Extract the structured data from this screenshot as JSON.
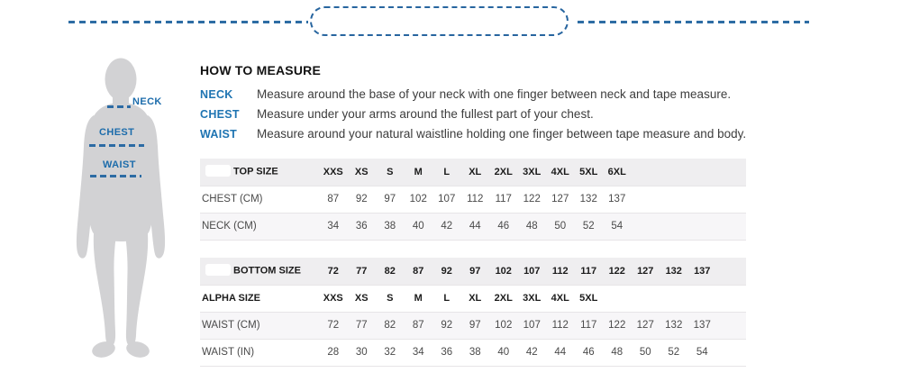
{
  "figure": {
    "neck_label": "NECK",
    "chest_label": "CHEST",
    "waist_label": "WAIST"
  },
  "how_to_measure": {
    "title": "HOW TO MEASURE",
    "items": [
      {
        "label": "NECK",
        "text": "Measure around the base of your neck with one finger between neck and tape measure."
      },
      {
        "label": "CHEST",
        "text": "Measure under your arms around the fullest part of your chest."
      },
      {
        "label": "WAIST",
        "text": "Measure around your natural waistline holding one finger between tape measure and body."
      }
    ]
  },
  "tables": {
    "top": {
      "title": "TOP SIZE",
      "logo_placeholder": true,
      "columns": [
        "XXS",
        "XS",
        "S",
        "M",
        "L",
        "XL",
        "2XL",
        "3XL",
        "4XL",
        "5XL",
        "6XL",
        "",
        "",
        ""
      ],
      "rows": [
        {
          "label": "CHEST (CM)",
          "shaded": false,
          "bold": false,
          "values": [
            "87",
            "92",
            "97",
            "102",
            "107",
            "112",
            "117",
            "122",
            "127",
            "132",
            "137",
            "",
            "",
            ""
          ]
        },
        {
          "label": "NECK (CM)",
          "shaded": true,
          "bold": false,
          "values": [
            "34",
            "36",
            "38",
            "40",
            "42",
            "44",
            "46",
            "48",
            "50",
            "52",
            "54",
            "",
            "",
            ""
          ]
        }
      ]
    },
    "bottom": {
      "title": "BOTTOM SIZE",
      "logo_placeholder": true,
      "columns": [
        "72",
        "77",
        "82",
        "87",
        "92",
        "97",
        "102",
        "107",
        "112",
        "117",
        "122",
        "127",
        "132",
        "137"
      ],
      "rows": [
        {
          "label": "ALPHA SIZE",
          "shaded": false,
          "bold": true,
          "values": [
            "XXS",
            "XS",
            "S",
            "M",
            "L",
            "XL",
            "2XL",
            "3XL",
            "4XL",
            "5XL",
            "",
            "",
            "",
            ""
          ]
        },
        {
          "label": "WAIST (CM)",
          "shaded": true,
          "bold": false,
          "values": [
            "72",
            "77",
            "82",
            "87",
            "92",
            "97",
            "102",
            "107",
            "112",
            "117",
            "122",
            "127",
            "132",
            "137"
          ]
        },
        {
          "label": "WAIST (IN)",
          "shaded": false,
          "bold": false,
          "values": [
            "28",
            "30",
            "32",
            "34",
            "36",
            "38",
            "40",
            "42",
            "44",
            "46",
            "48",
            "50",
            "52",
            "54"
          ]
        }
      ]
    }
  },
  "colors": {
    "accent_blue": "#1e74b2",
    "dash_blue": "#2e6da4",
    "silhouette_gray": "#d2d2d4",
    "header_bg": "#efeef0",
    "stripe_bg": "#f7f6f8"
  }
}
